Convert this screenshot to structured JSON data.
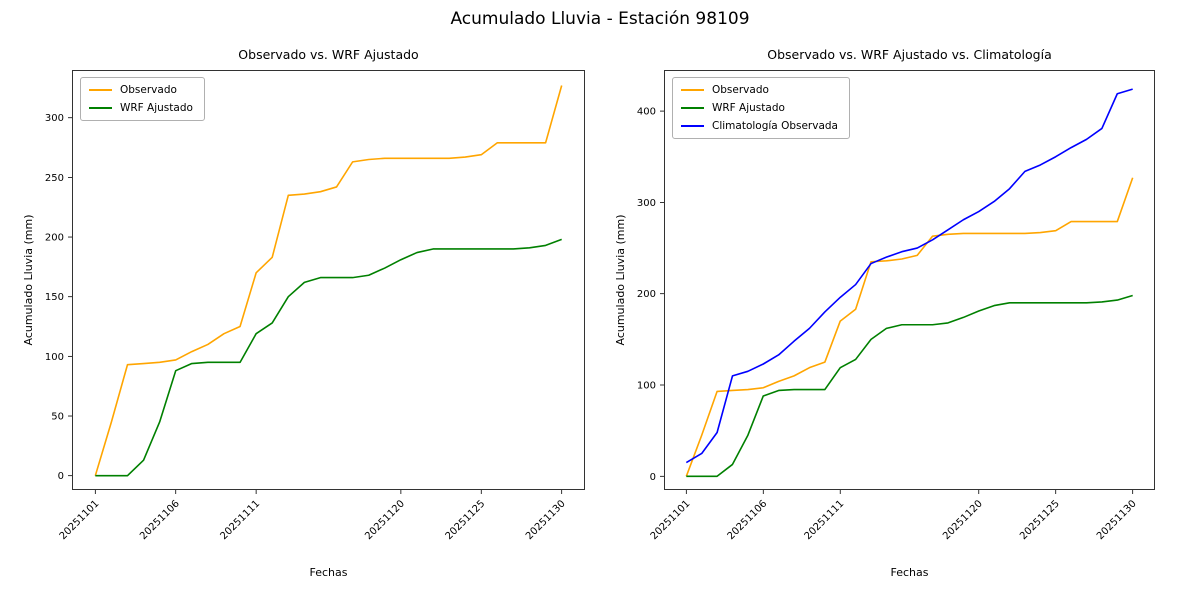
{
  "figure": {
    "title": "Acumulado Lluvia - Estación 98109",
    "background": "#ffffff"
  },
  "chart_data": [
    {
      "type": "line",
      "title": "Observado vs. WRF Ajustado",
      "xlabel": "Fechas",
      "ylabel": "Acumulado Lluvia (mm)",
      "legend_position": "upper left",
      "grid": false,
      "x": [
        "20251101",
        "20251102",
        "20251103",
        "20251104",
        "20251105",
        "20251106",
        "20251107",
        "20251108",
        "20251109",
        "20251110",
        "20251111",
        "20251112",
        "20251113",
        "20251114",
        "20251115",
        "20251116",
        "20251117",
        "20251118",
        "20251119",
        "20251120",
        "20251121",
        "20251122",
        "20251123",
        "20251124",
        "20251125",
        "20251126",
        "20251127",
        "20251128",
        "20251129",
        "20251130"
      ],
      "xtick_indices": [
        0,
        5,
        10,
        19,
        24,
        29
      ],
      "yticks": [
        0,
        50,
        100,
        150,
        200,
        250,
        300
      ],
      "ylim": [
        -12,
        340
      ],
      "series": [
        {
          "name": "Observado",
          "color": "#FFA500",
          "values": [
            0,
            45,
            93,
            94,
            95,
            97,
            104,
            110,
            119,
            125,
            170,
            183,
            235,
            236,
            238,
            242,
            263,
            265,
            266,
            266,
            266,
            266,
            266,
            267,
            269,
            279,
            279,
            279,
            279,
            327
          ]
        },
        {
          "name": "WRF Ajustado",
          "color": "#008000",
          "values": [
            0,
            0,
            0,
            13,
            45,
            88,
            94,
            95,
            95,
            95,
            119,
            128,
            150,
            162,
            166,
            166,
            166,
            168,
            174,
            181,
            187,
            190,
            190,
            190,
            190,
            190,
            190,
            191,
            193,
            198
          ]
        }
      ]
    },
    {
      "type": "line",
      "title": "Observado vs. WRF Ajustado vs. Climatología",
      "xlabel": "Fechas",
      "ylabel": "Acumulado Lluvia (mm)",
      "legend_position": "upper left",
      "grid": false,
      "x": [
        "20251101",
        "20251102",
        "20251103",
        "20251104",
        "20251105",
        "20251106",
        "20251107",
        "20251108",
        "20251109",
        "20251110",
        "20251111",
        "20251112",
        "20251113",
        "20251114",
        "20251115",
        "20251116",
        "20251117",
        "20251118",
        "20251119",
        "20251120",
        "20251121",
        "20251122",
        "20251123",
        "20251124",
        "20251125",
        "20251126",
        "20251127",
        "20251128",
        "20251129",
        "20251130"
      ],
      "xtick_indices": [
        0,
        5,
        10,
        19,
        24,
        29
      ],
      "yticks": [
        0,
        100,
        200,
        300,
        400
      ],
      "ylim": [
        -15,
        445
      ],
      "series": [
        {
          "name": "Observado",
          "color": "#FFA500",
          "values": [
            0,
            45,
            93,
            94,
            95,
            97,
            104,
            110,
            119,
            125,
            170,
            183,
            235,
            236,
            238,
            242,
            263,
            265,
            266,
            266,
            266,
            266,
            266,
            267,
            269,
            279,
            279,
            279,
            279,
            327
          ]
        },
        {
          "name": "WRF Ajustado",
          "color": "#008000",
          "values": [
            0,
            0,
            0,
            13,
            45,
            88,
            94,
            95,
            95,
            95,
            119,
            128,
            150,
            162,
            166,
            166,
            166,
            168,
            174,
            181,
            187,
            190,
            190,
            190,
            190,
            190,
            190,
            191,
            193,
            198
          ]
        },
        {
          "name": "Climatología Observada",
          "color": "#0000FF",
          "values": [
            15,
            25,
            48,
            110,
            115,
            123,
            133,
            148,
            162,
            180,
            196,
            210,
            233,
            240,
            246,
            250,
            259,
            270,
            281,
            290,
            301,
            315,
            334,
            341,
            350,
            360,
            369,
            381,
            419,
            424
          ]
        }
      ]
    }
  ]
}
